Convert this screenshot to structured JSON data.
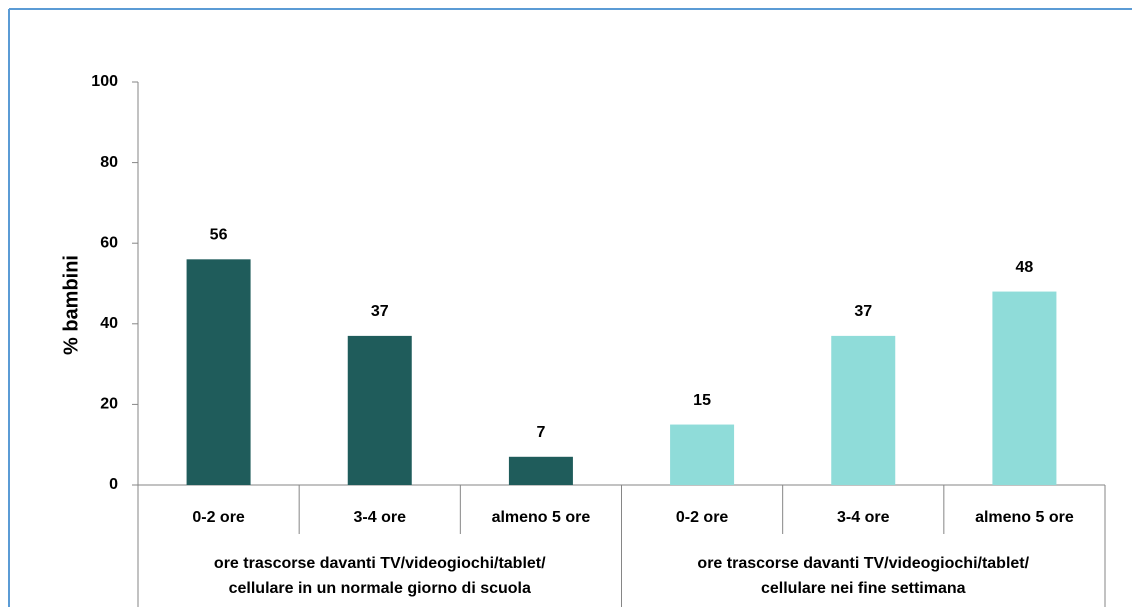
{
  "chart_data": {
    "type": "bar",
    "ylabel": "% bambini",
    "ylim": [
      0,
      100
    ],
    "yticks": [
      0,
      20,
      40,
      60,
      80,
      100
    ],
    "groups": [
      {
        "name": [
          "ore trascorse davanti TV/videogiochi/tablet/",
          "cellulare in un normale giorno di scuola"
        ],
        "color": "#1f5c5b",
        "categories": [
          "0-2 ore",
          "3-4 ore",
          "almeno 5 ore"
        ],
        "values": [
          56,
          37,
          7
        ]
      },
      {
        "name": [
          "ore trascorse davanti TV/videogiochi/tablet/",
          "cellulare nei fine settimana"
        ],
        "color": "#8fdcd9",
        "categories": [
          "0-2 ore",
          "3-4 ore",
          "almeno 5 ore"
        ],
        "values": [
          15,
          37,
          48
        ]
      }
    ]
  }
}
